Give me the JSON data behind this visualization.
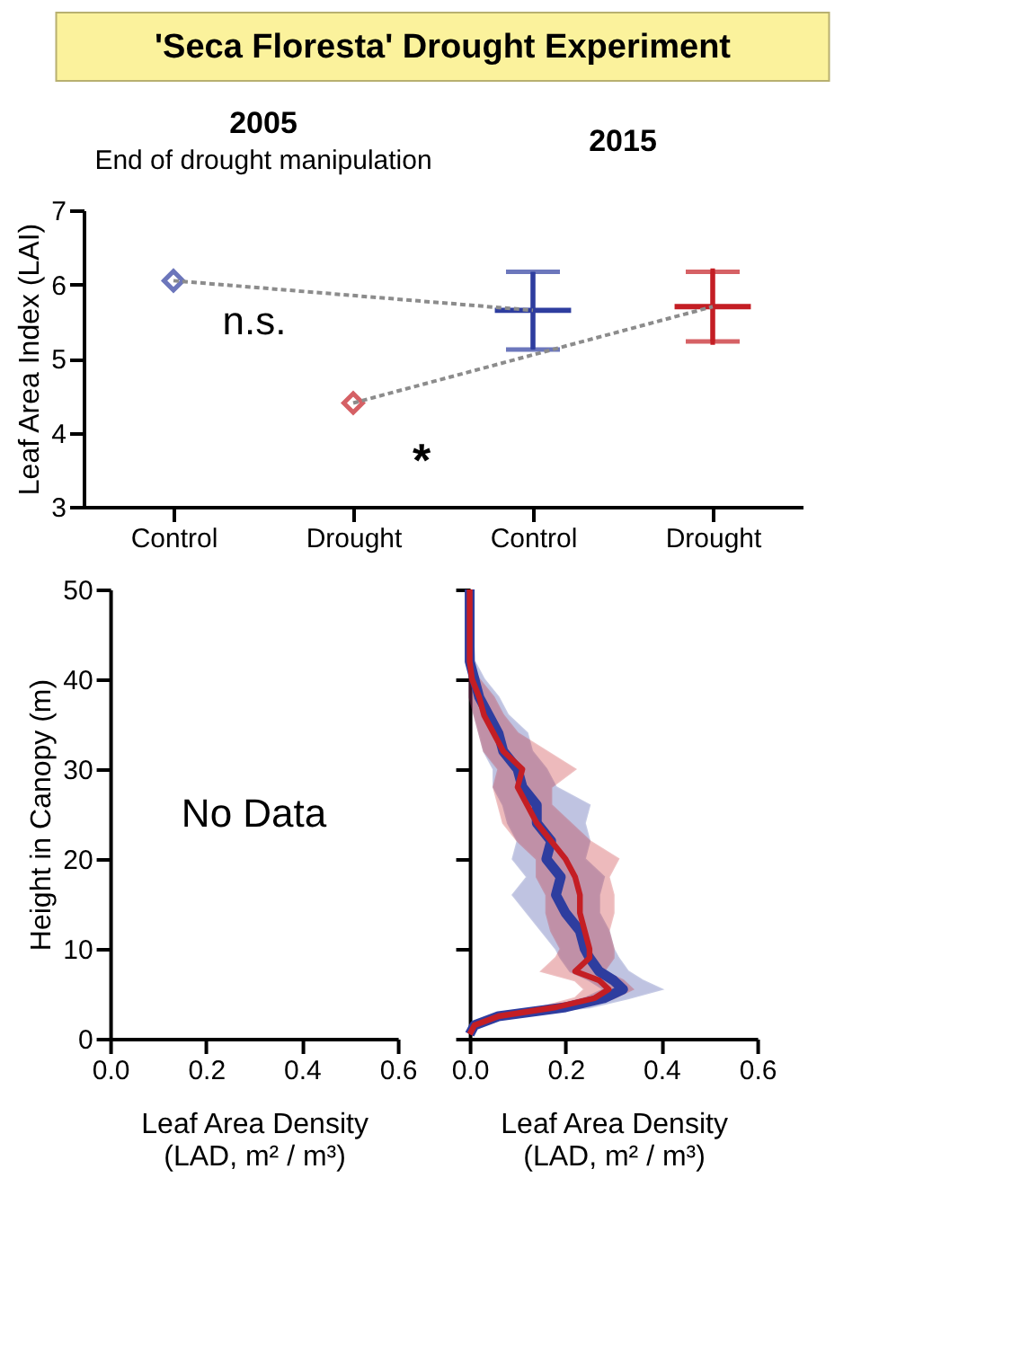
{
  "chart_data": [
    {
      "type": "scatter",
      "title": "'Seca Floresta' Drought Experiment",
      "ylabel": "Leaf Area Index (LAI)",
      "categories": [
        "Control",
        "Drought",
        "Control",
        "Drought"
      ],
      "ylim": [
        3,
        7
      ],
      "yticks": [
        3,
        4,
        5,
        6,
        7
      ],
      "grid": false,
      "series": [
        {
          "marker": "diamond",
          "colors": [
            "#2e3d9f",
            "#c41e24",
            null,
            null
          ],
          "values": [
            6.05,
            4.4,
            null,
            null
          ]
        },
        {
          "colors": [
            null,
            null,
            "#2e3d9f",
            "#c41e24"
          ],
          "values": [
            null,
            null,
            5.65,
            5.7
          ],
          "errors": [
            null,
            null,
            [
              5.12,
              6.17
            ],
            [
              5.23,
              6.17
            ]
          ]
        },
        {
          "type": "line",
          "color": "#8c8c8c",
          "line_style": "dashed",
          "values": [
            6.05,
            null,
            5.65,
            null
          ]
        },
        {
          "type": "line",
          "color": "#8c8c8c",
          "line_style": "dashed",
          "values": [
            null,
            4.4,
            null,
            5.7
          ]
        }
      ],
      "annotations": [
        "2005",
        "End of drought manipulation",
        "2015",
        "n.s.",
        "*"
      ]
    },
    {
      "type": "line",
      "ylabel": "Height in Canopy (m)",
      "xlabel": "Leaf Area Density\n(LAD, m² / m³)",
      "xlim": [
        0,
        0.6
      ],
      "xticks": [
        {
          "value": 0,
          "label": "0.0"
        },
        0.2,
        0.4,
        0.6
      ],
      "ylim": [
        0,
        50
      ],
      "yticks": [
        0,
        10,
        20,
        30,
        40,
        50
      ],
      "grid": false,
      "annotations": [
        "No Data"
      ]
    },
    {
      "type": "line",
      "orientation": "horizontal",
      "xlabel": "Leaf Area Density\n(LAD, m² / m³)",
      "xlim": [
        0,
        0.6
      ],
      "xticks": [
        {
          "value": 0,
          "label": "0.0"
        },
        0.2,
        0.4,
        0.6
      ],
      "ylim": [
        0,
        50
      ],
      "yticks": [
        0,
        10,
        20,
        30,
        40,
        50
      ],
      "tick_labels": "x",
      "grid": false,
      "line_style": "solid",
      "series": [
        {
          "color": "#2e3d9f",
          "x": [
            0.5,
            1.5,
            2.5,
            3.5,
            4.5,
            5.5,
            6.5,
            7.5,
            9,
            10,
            12,
            14,
            16,
            18,
            20,
            22,
            24,
            26,
            28,
            30,
            32,
            34,
            36,
            38,
            40,
            42,
            50
          ],
          "values": [
            0,
            0.01,
            0.06,
            0.2,
            0.28,
            0.32,
            0.3,
            0.27,
            0.25,
            0.24,
            0.23,
            0.2,
            0.18,
            0.19,
            0.16,
            0.17,
            0.14,
            0.14,
            0.11,
            0.1,
            0.07,
            0.06,
            0.04,
            0.02,
            0.01,
            0,
            0
          ],
          "lower": [
            0,
            0.01,
            0.05,
            0.17,
            0.24,
            0.28,
            0.25,
            0.21,
            0.19,
            0.18,
            0.15,
            0.12,
            0.09,
            0.12,
            0.09,
            0.1,
            0.08,
            0.07,
            0.05,
            0.05,
            0.03,
            0.02,
            0.01,
            0,
            0,
            0,
            0
          ],
          "upper": [
            0,
            0.01,
            0.07,
            0.25,
            0.33,
            0.4,
            0.36,
            0.33,
            0.31,
            0.3,
            0.29,
            0.27,
            0.27,
            0.28,
            0.24,
            0.25,
            0.24,
            0.25,
            0.18,
            0.16,
            0.13,
            0.12,
            0.08,
            0.06,
            0.03,
            0.01,
            0
          ]
        },
        {
          "color": "#c41e24",
          "x": [
            0.5,
            1.5,
            2.5,
            3.5,
            4.5,
            5.5,
            6.5,
            7.5,
            9,
            10,
            12,
            14,
            16,
            18,
            20,
            22,
            24,
            26,
            28,
            30,
            32,
            34,
            36,
            38,
            40,
            42,
            50
          ],
          "values": [
            0,
            0.01,
            0.06,
            0.18,
            0.26,
            0.29,
            0.27,
            0.22,
            0.25,
            0.25,
            0.24,
            0.23,
            0.23,
            0.22,
            0.2,
            0.17,
            0.14,
            0.12,
            0.1,
            0.11,
            0.07,
            0.05,
            0.03,
            0.02,
            0.005,
            0,
            0
          ],
          "lower": [
            0,
            0.01,
            0.05,
            0.15,
            0.22,
            0.24,
            0.22,
            0.15,
            0.18,
            0.19,
            0.17,
            0.16,
            0.16,
            0.14,
            0.14,
            0.1,
            0.07,
            0.06,
            0.05,
            0.06,
            0.03,
            0.02,
            0.01,
            0,
            0,
            0,
            0
          ],
          "upper": [
            0,
            0.01,
            0.07,
            0.22,
            0.3,
            0.34,
            0.32,
            0.28,
            0.3,
            0.3,
            0.29,
            0.3,
            0.3,
            0.29,
            0.31,
            0.25,
            0.21,
            0.17,
            0.17,
            0.22,
            0.16,
            0.1,
            0.07,
            0.05,
            0.02,
            0,
            0
          ]
        }
      ]
    }
  ]
}
